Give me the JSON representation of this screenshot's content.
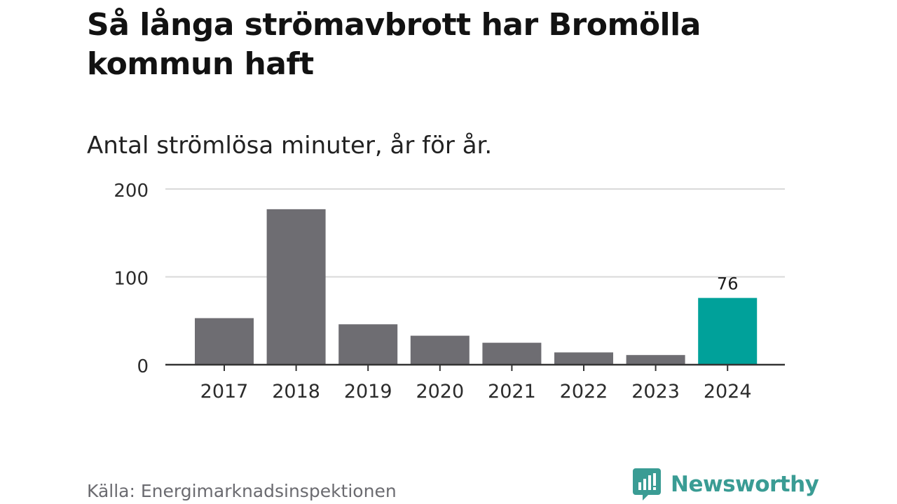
{
  "title": "Så långa strömavbrott har Bromölla kommun haft",
  "subtitle": "Antal strömlösa minuter, år för år.",
  "source": "Källa: Energimarknadsinspektionen",
  "brand": {
    "name": "Newsworthy",
    "icon": "newsworthy-logo-icon",
    "color": "#3a9c94"
  },
  "colors": {
    "bar": "#6e6d72",
    "highlight": "#00a19a",
    "grid": "#d9d9d9",
    "axis": "#333333",
    "text": "#2b2b2b"
  },
  "chart_data": {
    "type": "bar",
    "categories": [
      "2017",
      "2018",
      "2019",
      "2020",
      "2021",
      "2022",
      "2023",
      "2024"
    ],
    "values": [
      53,
      177,
      46,
      33,
      25,
      14,
      11,
      76
    ],
    "highlight_index": 7,
    "data_labels": [
      {
        "index": 7,
        "text": "76"
      }
    ],
    "yticks": [
      0,
      100,
      200
    ],
    "ylim": [
      0,
      200
    ],
    "grid": true,
    "xlabel": "",
    "ylabel": ""
  }
}
